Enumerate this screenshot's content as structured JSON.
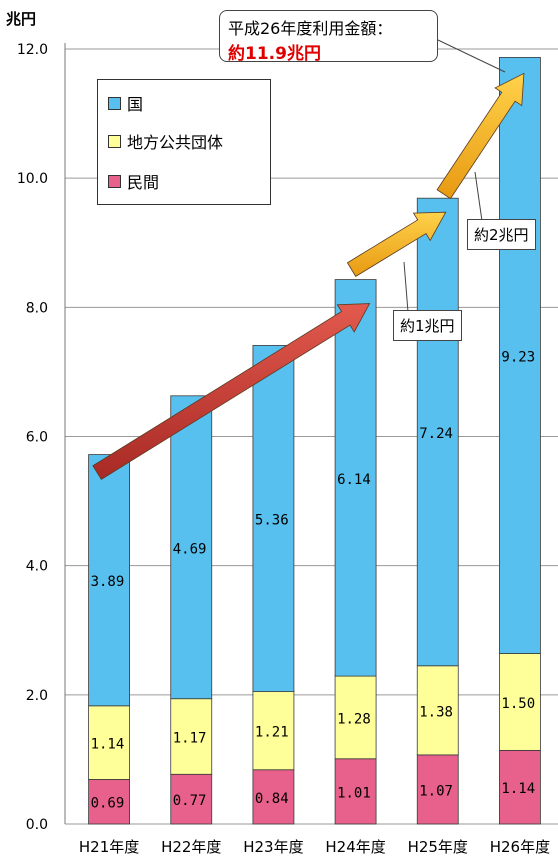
{
  "chart_data": {
    "type": "bar",
    "stacked": true,
    "unit_label": "兆円",
    "categories": [
      "H21年度",
      "H22年度",
      "H23年度",
      "H24年度",
      "H25年度",
      "H26年度"
    ],
    "series": [
      {
        "name": "民間",
        "color": "#e8608c",
        "values": [
          0.69,
          0.77,
          0.84,
          1.01,
          1.07,
          1.14
        ]
      },
      {
        "name": "地方公共団体",
        "color": "#ffff99",
        "values": [
          1.14,
          1.17,
          1.21,
          1.28,
          1.38,
          1.5
        ]
      },
      {
        "name": "国",
        "color": "#57c0ee",
        "values": [
          3.89,
          4.69,
          5.36,
          6.14,
          7.24,
          9.23
        ]
      }
    ],
    "ylim": [
      0,
      12
    ],
    "yticks": [
      "0.0",
      "2.0",
      "4.0",
      "6.0",
      "8.0",
      "10.0",
      "12.0"
    ],
    "grid": true,
    "legend_position": "top-left",
    "legend_order": [
      "国",
      "地方公共団体",
      "民間"
    ],
    "annotations": {
      "title_line1": "平成26年度利用金額：",
      "title_line2": "約11.9兆円",
      "note_1": "約1兆円",
      "note_2": "約2兆円"
    },
    "arrow_colors": {
      "red": "#c83a32",
      "orange": "#f5b21e"
    }
  }
}
